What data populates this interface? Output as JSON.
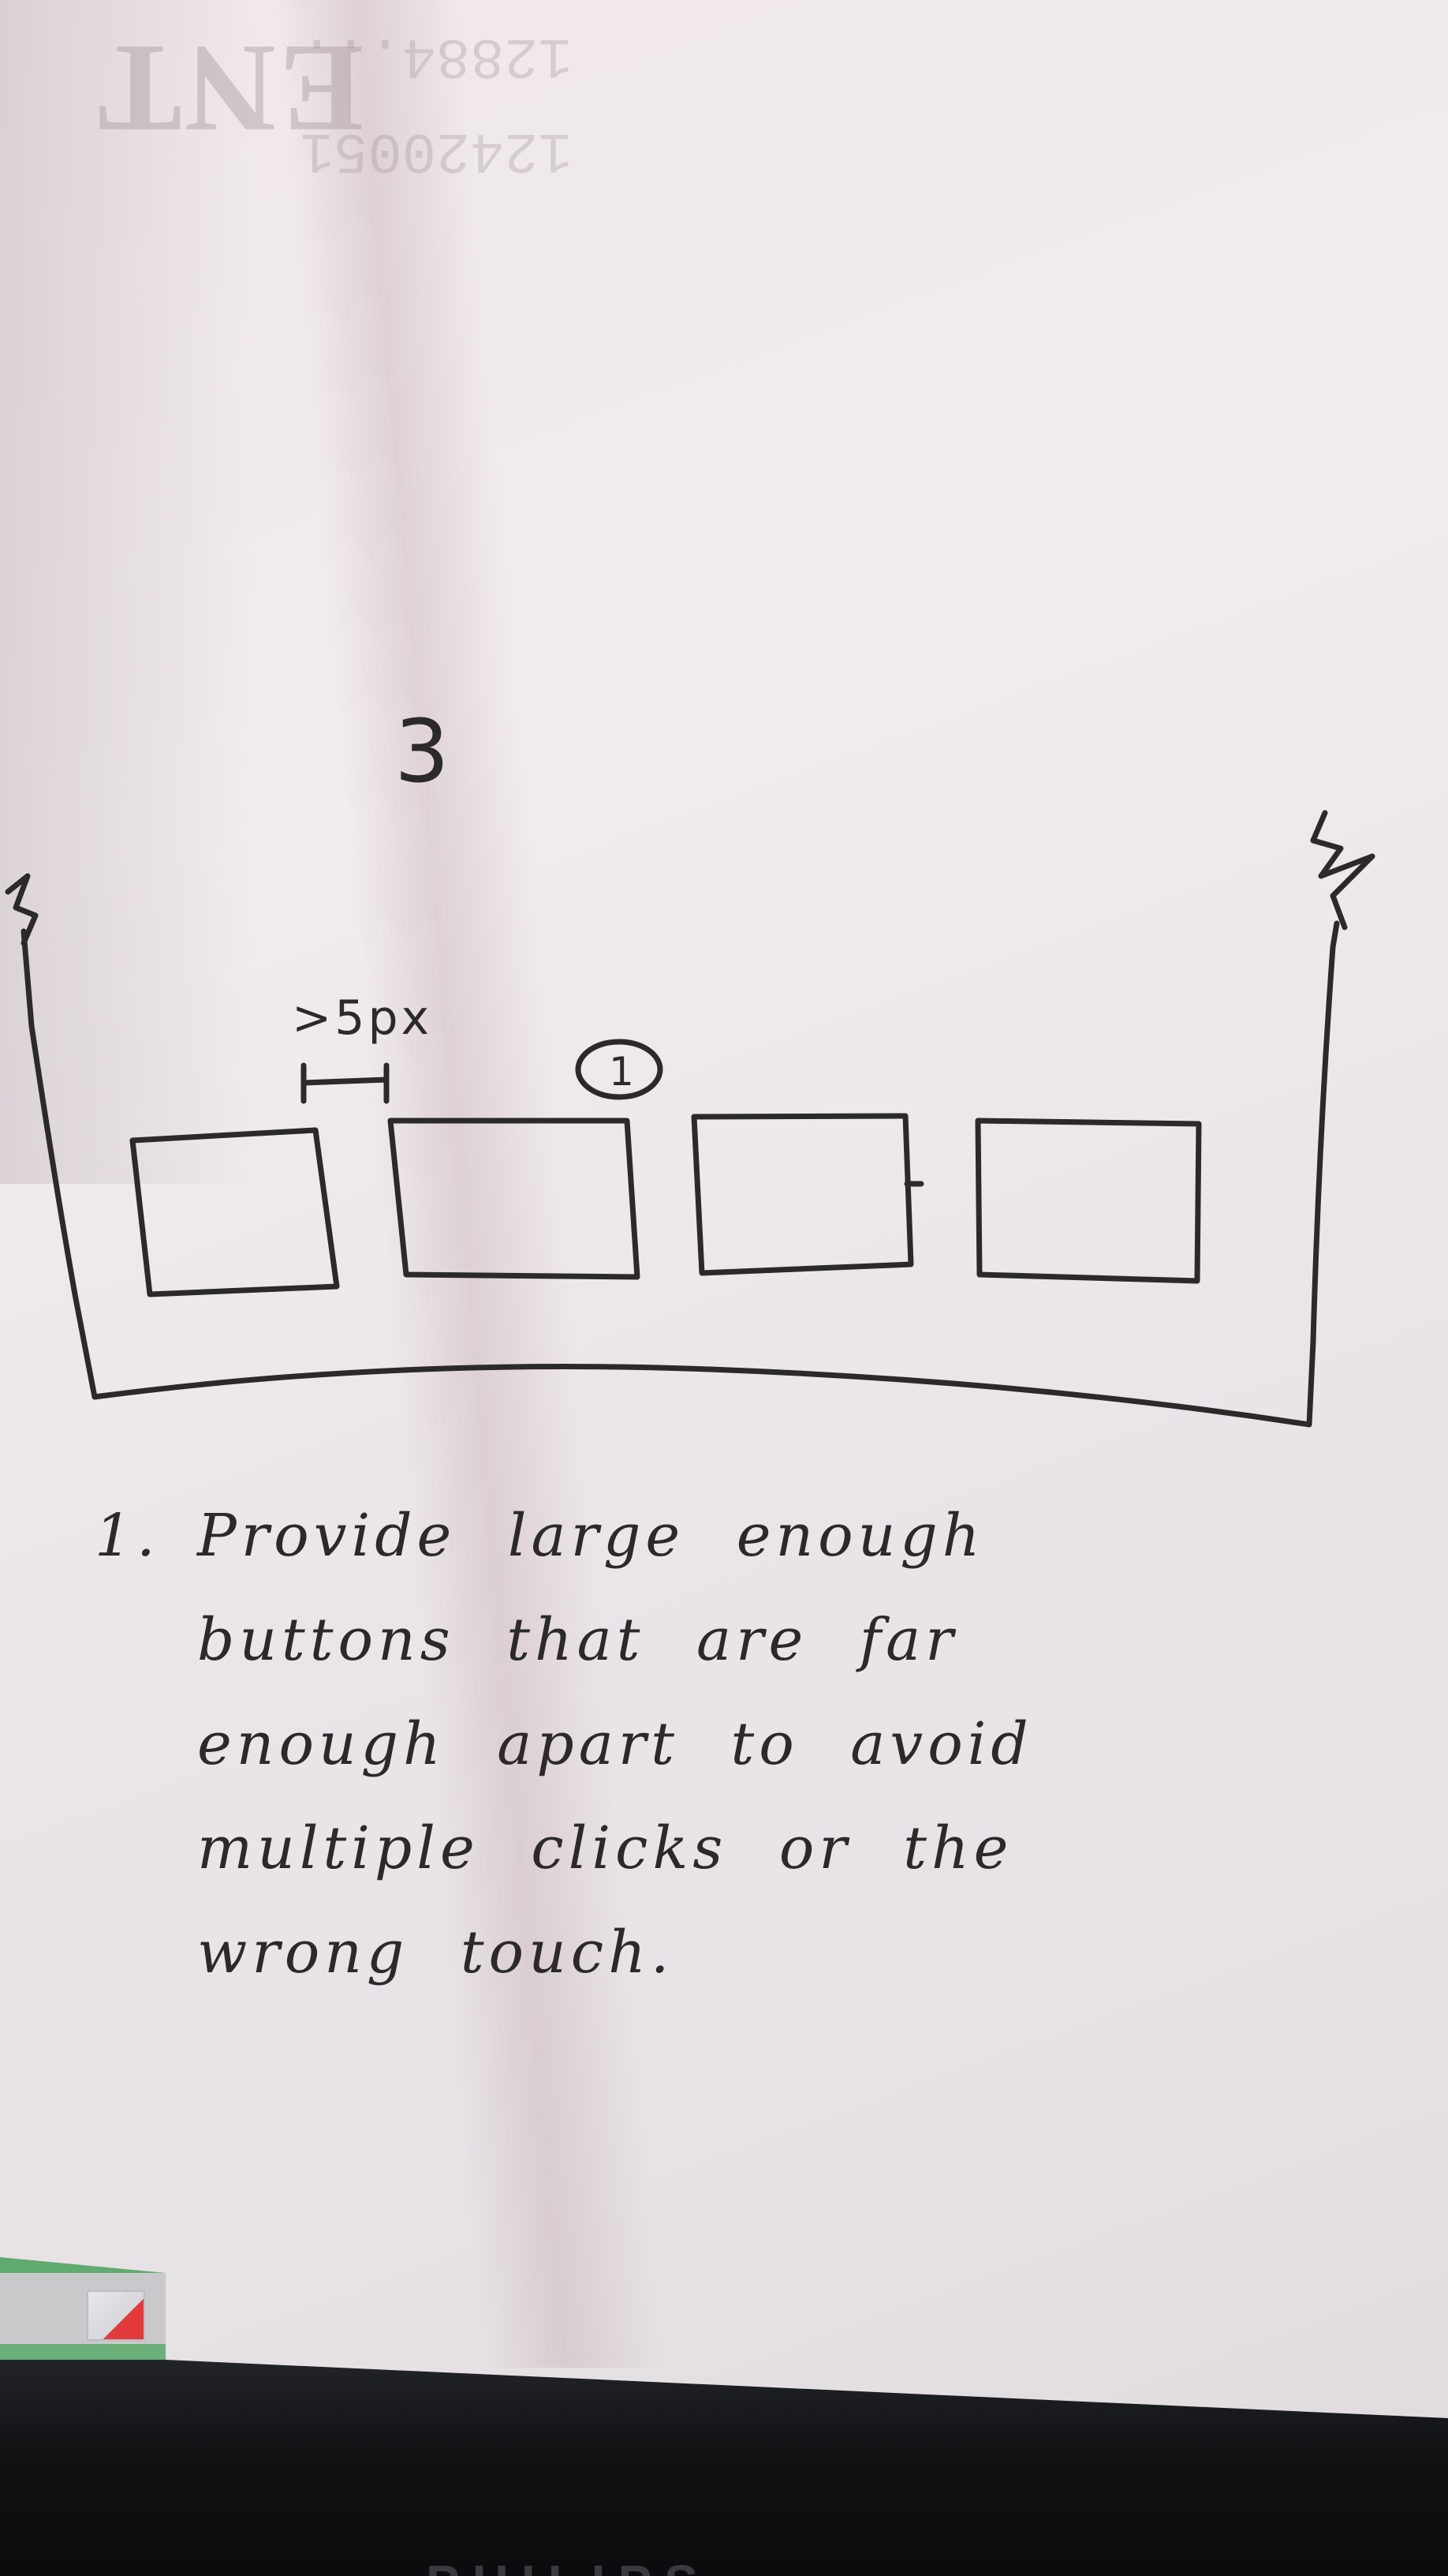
{
  "sketch": {
    "page_number": "3",
    "spacing_annotation": ">5px",
    "callout_number": "1",
    "button_count": 4
  },
  "note": {
    "number": "1.",
    "lines": [
      "Provide large enough",
      "buttons that are far",
      "enough apart to avoid",
      "multiple clicks or the",
      "wrong touch."
    ]
  },
  "background": {
    "bleed_text": "ENT",
    "bleed_numbers": [
      "12420051",
      "12884..."
    ],
    "monitor_brand": "PHILIPS"
  },
  "colors": {
    "paper": "#efe7ea",
    "ink": "#2b2a28",
    "monitor_screen": "#3aa07a",
    "bezel": "#101113"
  }
}
